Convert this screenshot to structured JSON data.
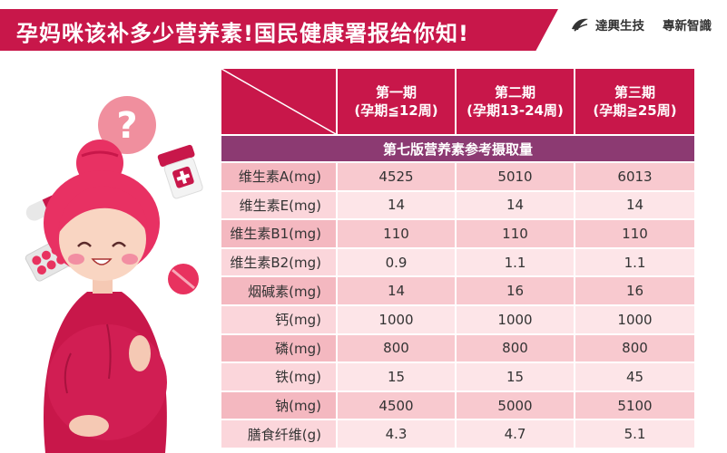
{
  "title": "孕妈咪该补多少营养素!国民健康署报给你知!",
  "brand": {
    "name1": "達興生技",
    "name2": "專新智識"
  },
  "table": {
    "columns": [
      {
        "line1": "第一期",
        "line2": "(孕期≦12周)"
      },
      {
        "line1": "第二期",
        "line2": "(孕期13-24周)"
      },
      {
        "line1": "第三期",
        "line2": "(孕期≧25周)"
      }
    ],
    "subheader": "第七版营养素参考摄取量",
    "rows": [
      {
        "label": "维生素A(mg)",
        "v1": "4525",
        "v2": "5010",
        "v3": "6013"
      },
      {
        "label": "维生素E(mg)",
        "v1": "14",
        "v2": "14",
        "v3": "14"
      },
      {
        "label": "维生素B1(mg)",
        "v1": "110",
        "v2": "110",
        "v3": "110"
      },
      {
        "label": "维生素B2(mg)",
        "v1": "0.9",
        "v2": "1.1",
        "v3": "1.1"
      },
      {
        "label": "烟碱素(mg)",
        "v1": "14",
        "v2": "16",
        "v3": "16"
      },
      {
        "label": "钙(mg)",
        "v1": "1000",
        "v2": "1000",
        "v3": "1000"
      },
      {
        "label": "磷(mg)",
        "v1": "800",
        "v2": "800",
        "v3": "800"
      },
      {
        "label": "铁(mg)",
        "v1": "15",
        "v2": "15",
        "v3": "45"
      },
      {
        "label": "钠(mg)",
        "v1": "4500",
        "v2": "5000",
        "v3": "5100"
      },
      {
        "label": "膳食纤维(g)",
        "v1": "4.3",
        "v2": "4.7",
        "v3": "5.1"
      }
    ]
  },
  "illustration": {
    "bubble_glyph": "?"
  },
  "colors": {
    "primary": "#c8174a",
    "subheader": "#8c3a72",
    "row_dark": "#f8c9cf",
    "row_light": "#fde5e8"
  }
}
